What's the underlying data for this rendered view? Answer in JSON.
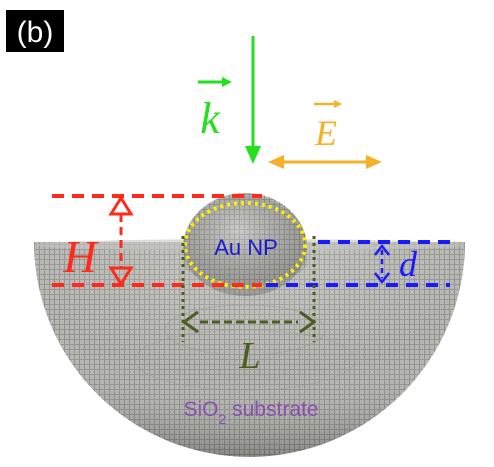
{
  "panel_label": "(b)",
  "labels": {
    "wavevector": "k",
    "field": "E",
    "height": "H",
    "depth": "d",
    "length": "L",
    "nanoparticle": "Au NP",
    "substrate_prefix": "SiO",
    "substrate_subscript": "2",
    "substrate_suffix": " substrate"
  },
  "colors": {
    "wavevector": "#22e01c",
    "field": "#f5b12a",
    "height": "#ff2a1a",
    "depth": "#1a1aff",
    "length": "#4a5e22",
    "nanoparticle_outline": "#ffee00",
    "nanoparticle_text": "#1a1ad0",
    "substrate_text": "#8a4fb0",
    "substrate_fill": "#a9a9a5"
  }
}
